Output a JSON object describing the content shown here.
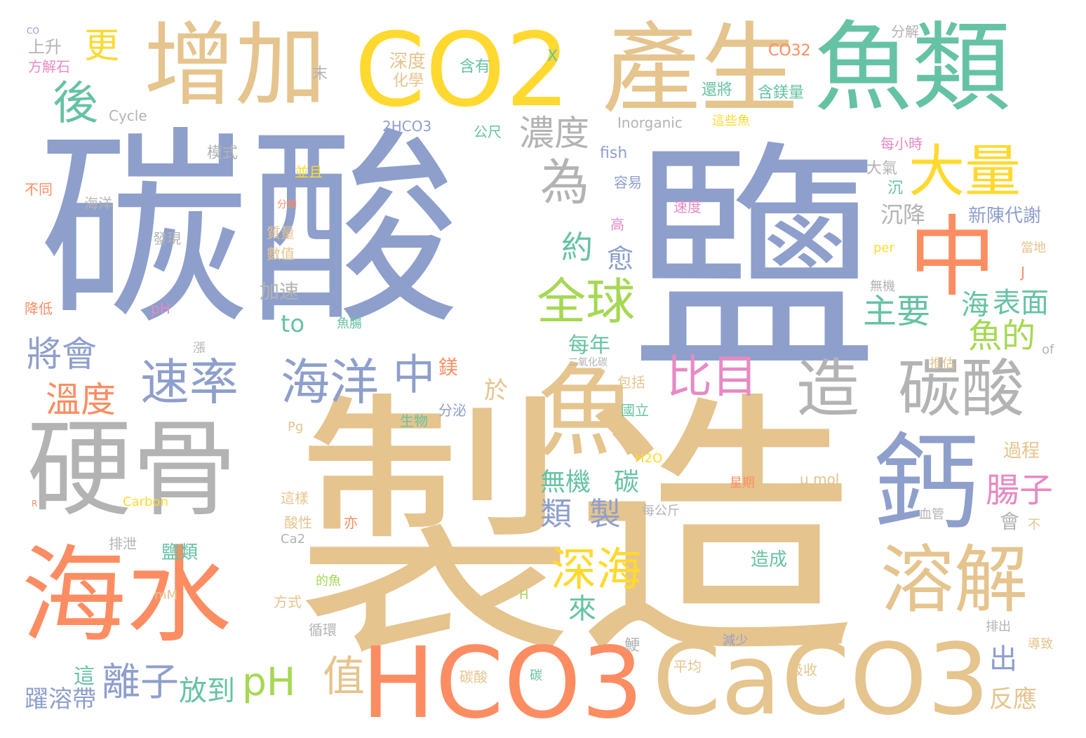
{
  "palette": {
    "blue": "#8e9fcc",
    "tan": "#e5c48e",
    "yellow": "#ffd92f",
    "green": "#66c2a5",
    "orange": "#fc8d62",
    "lime": "#a6d854",
    "pink": "#e78ac3",
    "gray": "#b3b3b3"
  },
  "words": [
    {
      "text": "碳酸",
      "color": "blue"
    },
    {
      "text": "鹽",
      "color": "blue"
    },
    {
      "text": "製造",
      "color": "tan"
    },
    {
      "text": "增加",
      "color": "tan"
    },
    {
      "text": "CO2",
      "color": "yellow"
    },
    {
      "text": "產生",
      "color": "tan"
    },
    {
      "text": "魚類",
      "color": "green"
    },
    {
      "text": "硬骨",
      "color": "gray"
    },
    {
      "text": "海水",
      "color": "orange"
    },
    {
      "text": "HCO3",
      "color": "orange"
    },
    {
      "text": "CaCO3",
      "color": "tan"
    },
    {
      "text": "魚",
      "color": "tan"
    },
    {
      "text": "鈣",
      "color": "blue"
    },
    {
      "text": "中",
      "color": "orange"
    },
    {
      "text": "大量",
      "color": "yellow"
    },
    {
      "text": "造",
      "color": "gray"
    },
    {
      "text": "碳酸",
      "color": "gray"
    },
    {
      "text": "溶解",
      "color": "tan"
    },
    {
      "text": "全球",
      "color": "lime"
    },
    {
      "text": "為",
      "color": "gray"
    },
    {
      "text": "後",
      "color": "green"
    },
    {
      "text": "更",
      "color": "yellow"
    },
    {
      "text": "速率",
      "color": "blue"
    },
    {
      "text": "海洋",
      "color": "blue"
    },
    {
      "text": "中",
      "color": "blue"
    },
    {
      "text": "比目",
      "color": "pink"
    },
    {
      "text": "深海",
      "color": "yellow"
    },
    {
      "text": "pH",
      "color": "lime"
    },
    {
      "text": "值",
      "color": "tan"
    },
    {
      "text": "離子",
      "color": "blue"
    },
    {
      "text": "溫度",
      "color": "orange"
    },
    {
      "text": "將會",
      "color": "blue"
    },
    {
      "text": "濃度",
      "color": "gray"
    },
    {
      "text": "約",
      "color": "green"
    },
    {
      "text": "愈",
      "color": "blue"
    },
    {
      "text": "主要",
      "color": "green"
    },
    {
      "text": "魚的",
      "color": "lime"
    },
    {
      "text": "海",
      "color": "green"
    },
    {
      "text": "表面",
      "color": "green"
    },
    {
      "text": "腸子",
      "color": "pink"
    },
    {
      "text": "類",
      "color": "blue"
    },
    {
      "text": "製",
      "color": "blue"
    },
    {
      "text": "無機",
      "color": "green"
    },
    {
      "text": "碳",
      "color": "green"
    },
    {
      "text": "來",
      "color": "green"
    },
    {
      "text": "放到",
      "color": "green"
    },
    {
      "text": "出",
      "color": "blue"
    },
    {
      "text": "反應",
      "color": "tan"
    },
    {
      "text": "躍溶帶",
      "color": "blue"
    },
    {
      "text": "每年",
      "color": "green"
    },
    {
      "text": "鎂",
      "color": "orange"
    },
    {
      "text": "於",
      "color": "tan"
    },
    {
      "text": "to",
      "color": "green"
    },
    {
      "text": "加速",
      "color": "gray"
    },
    {
      "text": "沉降",
      "color": "gray"
    },
    {
      "text": "新陳代謝",
      "color": "blue"
    },
    {
      "text": "上升",
      "color": "gray"
    },
    {
      "text": "深度",
      "color": "tan"
    },
    {
      "text": "化學",
      "color": "tan"
    },
    {
      "text": "含有",
      "color": "green"
    },
    {
      "text": "CO32",
      "color": "orange"
    },
    {
      "text": "分解",
      "color": "gray"
    },
    {
      "text": "還將",
      "color": "green"
    },
    {
      "text": "含鎂量",
      "color": "green"
    },
    {
      "text": "這些魚",
      "color": "yellow"
    },
    {
      "text": "Inorganic",
      "color": "gray"
    },
    {
      "text": "2HCO3",
      "color": "blue"
    },
    {
      "text": "公尺",
      "color": "green"
    },
    {
      "text": "fish",
      "color": "blue"
    },
    {
      "text": "容易",
      "color": "blue"
    },
    {
      "text": "每小時",
      "color": "pink"
    },
    {
      "text": "大氣",
      "color": "gray"
    },
    {
      "text": "沉",
      "color": "green"
    },
    {
      "text": "速度",
      "color": "pink"
    },
    {
      "text": "高",
      "color": "pink"
    },
    {
      "text": "方解石",
      "color": "pink"
    },
    {
      "text": "Cycle",
      "color": "gray"
    },
    {
      "text": "模式",
      "color": "gray"
    },
    {
      "text": "海洋",
      "color": "gray"
    },
    {
      "text": "不同",
      "color": "orange"
    },
    {
      "text": "並且",
      "color": "yellow"
    },
    {
      "text": "分類",
      "color": "orange"
    },
    {
      "text": "發現",
      "color": "gray"
    },
    {
      "text": "質量",
      "color": "tan"
    },
    {
      "text": "數值",
      "color": "tan"
    },
    {
      "text": "降低",
      "color": "orange"
    },
    {
      "text": "pH",
      "color": "pink"
    },
    {
      "text": "魚腸",
      "color": "green"
    },
    {
      "text": "X",
      "color": "green"
    },
    {
      "text": "末",
      "color": "gray"
    },
    {
      "text": "每公斤",
      "color": "gray"
    },
    {
      "text": "國立",
      "color": "green"
    },
    {
      "text": "包括",
      "color": "tan"
    },
    {
      "text": "二氧化碳",
      "color": "gray"
    },
    {
      "text": "生物",
      "color": "green"
    },
    {
      "text": "分泌",
      "color": "blue"
    },
    {
      "text": "Pg",
      "color": "tan"
    },
    {
      "text": "H2O",
      "color": "yellow"
    },
    {
      "text": "μ mol",
      "color": "tan"
    },
    {
      "text": "星期",
      "color": "orange"
    },
    {
      "text": "Carbon",
      "color": "yellow"
    },
    {
      "text": "這樣",
      "color": "tan"
    },
    {
      "text": "酸性",
      "color": "tan"
    },
    {
      "text": "亦",
      "color": "orange"
    },
    {
      "text": "Ca2",
      "color": "gray"
    },
    {
      "text": "排泄",
      "color": "gray"
    },
    {
      "text": "鹽類",
      "color": "green"
    },
    {
      "text": "mM",
      "color": "tan"
    },
    {
      "text": "的魚",
      "color": "lime"
    },
    {
      "text": "方式",
      "color": "tan"
    },
    {
      "text": "H",
      "color": "lime"
    },
    {
      "text": "造成",
      "color": "green"
    },
    {
      "text": "過程",
      "color": "tan"
    },
    {
      "text": "會",
      "color": "gray"
    },
    {
      "text": "不",
      "color": "tan"
    },
    {
      "text": "血管",
      "color": "gray"
    },
    {
      "text": "推估",
      "color": "tan"
    },
    {
      "text": "無機",
      "color": "gray"
    },
    {
      "text": "當地",
      "color": "tan"
    },
    {
      "text": "per",
      "color": "yellow"
    },
    {
      "text": "J",
      "color": "orange"
    },
    {
      "text": "of",
      "color": "gray"
    },
    {
      "text": "循環",
      "color": "gray"
    },
    {
      "text": "減少",
      "color": "blue"
    },
    {
      "text": "平均",
      "color": "tan"
    },
    {
      "text": "吸收",
      "color": "tan"
    },
    {
      "text": "碳酸",
      "color": "tan"
    },
    {
      "text": "碳",
      "color": "green"
    },
    {
      "text": "排出",
      "color": "gray"
    },
    {
      "text": "導致",
      "color": "tan"
    },
    {
      "text": "這",
      "color": "green"
    },
    {
      "text": "鯁",
      "color": "gray"
    },
    {
      "text": "CO",
      "color": "blue"
    },
    {
      "text": "R",
      "color": "orange"
    },
    {
      "text": "漲",
      "color": "gray"
    }
  ]
}
